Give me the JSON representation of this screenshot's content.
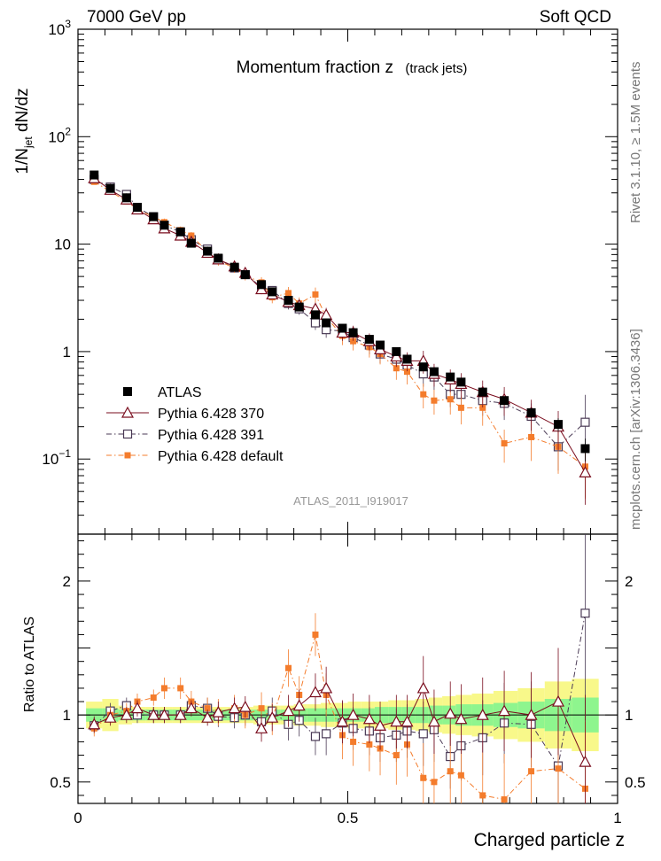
{
  "header": {
    "left": "7000 GeV pp",
    "right": "Soft QCD"
  },
  "title": "Momentum fraction z",
  "title_note": "(track jets)",
  "ylabel_top": "1/N_jet dN/dz",
  "ylabel_bottom": "Ratio to ATLAS",
  "xlabel": "Charged particle z",
  "side_top": "Rivet 3.1.10, ≥ 1.5M events",
  "side_bottom": "mcplots.cern.ch [arXiv:1306.3436]",
  "analysis_label": "ATLAS_2011_I919017",
  "colors": {
    "data": "#000000",
    "p370": "#7a0d1e",
    "p391": "#4a3a55",
    "pdef": "#f47c2c",
    "band_inner": "#8ef58e",
    "band_outer": "#f8f88a"
  },
  "chart_data": {
    "type": "scatter",
    "x": [
      0.03,
      0.06,
      0.09,
      0.11,
      0.14,
      0.16,
      0.19,
      0.21,
      0.24,
      0.26,
      0.29,
      0.31,
      0.34,
      0.36,
      0.39,
      0.41,
      0.44,
      0.46,
      0.49,
      0.51,
      0.54,
      0.56,
      0.59,
      0.61,
      0.64,
      0.66,
      0.69,
      0.71,
      0.75,
      0.79,
      0.84,
      0.89,
      0.94
    ],
    "xlim": [
      0,
      1
    ],
    "top_ylim": [
      0.02,
      1000
    ],
    "top_yscale": "log",
    "top_yticks": [
      {
        "v": 1000,
        "label": "10^3"
      },
      {
        "v": 100,
        "label": "10^2"
      },
      {
        "v": 10,
        "label": "10"
      },
      {
        "v": 1,
        "label": "1"
      },
      {
        "v": 0.1,
        "label": "10^-1"
      }
    ],
    "bottom_ylim": [
      0.34,
      2.35
    ],
    "bottom_yticks": [
      0.5,
      1,
      2
    ],
    "xticks": [
      0,
      0.5,
      1
    ],
    "legend_placement": "lower-left",
    "series": [
      {
        "key": "data",
        "name": "ATLAS",
        "marker": "filled-square",
        "line": "none",
        "values": [
          44,
          33,
          27,
          22,
          18,
          15,
          13,
          10.2,
          8.6,
          7.4,
          6.1,
          5.2,
          4.2,
          3.6,
          3.0,
          2.6,
          2.2,
          1.85,
          1.65,
          1.5,
          1.3,
          1.15,
          1.0,
          0.85,
          0.72,
          0.65,
          0.58,
          0.52,
          0.42,
          0.35,
          0.27,
          0.21,
          0.125
        ],
        "errors": [
          1,
          1,
          0.8,
          0.6,
          0.5,
          0.4,
          0.4,
          0.3,
          0.3,
          0.2,
          0.2,
          0.15,
          0.12,
          0.1,
          0.08,
          0.07,
          0.06,
          0.05,
          0.05,
          0.04,
          0.04,
          0.03,
          0.03,
          0.03,
          0.03,
          0.03,
          0.03,
          0.03,
          0.03,
          0.03,
          0.03,
          0.03,
          0.03
        ]
      },
      {
        "key": "p370",
        "name": "Pythia 6.428 370",
        "marker": "open-triangle",
        "line": "solid",
        "values": [
          41,
          32,
          26,
          21,
          17,
          14,
          12,
          10.5,
          8.3,
          7.2,
          6.2,
          5.4,
          3.8,
          3.4,
          2.9,
          2.7,
          2.5,
          2.2,
          1.5,
          1.5,
          1.25,
          1.05,
          0.9,
          0.82,
          0.82,
          0.62,
          0.55,
          0.5,
          0.42,
          0.36,
          0.27,
          0.2,
          0.075
        ],
        "ratio": [
          0.93,
          0.98,
          1.0,
          1.05,
          1.0,
          1.0,
          1.0,
          1.05,
          0.98,
          1.02,
          1.05,
          1.06,
          0.9,
          0.98,
          1.03,
          1.07,
          1.17,
          1.2,
          0.95,
          1.0,
          0.97,
          0.92,
          0.95,
          0.95,
          1.2,
          0.95,
          1.01,
          0.97,
          1.0,
          1.03,
          1.0,
          1.1,
          0.65
        ],
        "ratio_err": [
          0.03,
          0.03,
          0.03,
          0.03,
          0.03,
          0.03,
          0.03,
          0.03,
          0.03,
          0.04,
          0.04,
          0.04,
          0.05,
          0.05,
          0.06,
          0.06,
          0.07,
          0.08,
          0.08,
          0.08,
          0.09,
          0.09,
          0.1,
          0.1,
          0.12,
          0.12,
          0.12,
          0.13,
          0.14,
          0.15,
          0.16,
          0.2,
          0.25
        ]
      },
      {
        "key": "p391",
        "name": "Pythia 6.428 391",
        "marker": "open-square",
        "line": "dash-dot",
        "values": [
          40,
          34,
          29,
          22,
          18,
          15,
          13,
          11,
          9.0,
          7.3,
          6.0,
          5.2,
          4.0,
          3.7,
          2.8,
          2.5,
          1.85,
          1.6,
          1.55,
          1.35,
          1.15,
          0.95,
          0.85,
          0.75,
          0.62,
          0.58,
          0.4,
          0.4,
          0.35,
          0.33,
          0.25,
          0.13,
          0.22
        ],
        "ratio": [
          0.92,
          1.03,
          1.07,
          1.0,
          1.0,
          1.0,
          1.0,
          1.07,
          1.05,
          0.99,
          0.98,
          1.0,
          0.95,
          1.03,
          0.93,
          0.96,
          0.84,
          0.86,
          0.94,
          0.9,
          0.88,
          0.83,
          0.85,
          0.88,
          0.86,
          0.89,
          0.69,
          0.77,
          0.83,
          0.94,
          0.93,
          0.62,
          1.76
        ],
        "ratio_err": [
          0.03,
          0.03,
          0.03,
          0.03,
          0.03,
          0.03,
          0.03,
          0.03,
          0.04,
          0.04,
          0.04,
          0.04,
          0.05,
          0.05,
          0.06,
          0.06,
          0.07,
          0.08,
          0.08,
          0.08,
          0.09,
          0.09,
          0.1,
          0.1,
          0.12,
          0.12,
          0.12,
          0.13,
          0.14,
          0.15,
          0.16,
          0.2,
          0.4
        ]
      },
      {
        "key": "pdef",
        "name": "Pythia 6.428 default",
        "marker": "filled-small-square",
        "line": "dash-dot",
        "values": [
          38,
          31,
          25,
          21,
          18,
          16,
          13.5,
          12,
          8.5,
          7.0,
          6.0,
          5.1,
          4.4,
          3.2,
          3.5,
          2.8,
          3.4,
          2.1,
          1.4,
          1.25,
          1.1,
          0.95,
          0.7,
          0.65,
          0.4,
          0.35,
          0.36,
          0.3,
          0.3,
          0.14,
          0.16,
          0.13,
          0.085
        ],
        "ratio": [
          0.9,
          1.0,
          1.03,
          1.1,
          1.13,
          1.2,
          1.2,
          1.1,
          1.05,
          1.02,
          1.05,
          1.0,
          1.05,
          0.97,
          1.35,
          1.15,
          1.6,
          1.15,
          0.85,
          0.8,
          0.78,
          0.75,
          0.7,
          0.78,
          0.53,
          0.5,
          0.58,
          0.55,
          0.4,
          0.37,
          0.58,
          0.6,
          0.45
        ],
        "ratio_err": [
          0.03,
          0.03,
          0.03,
          0.03,
          0.03,
          0.04,
          0.04,
          0.04,
          0.04,
          0.05,
          0.05,
          0.05,
          0.06,
          0.06,
          0.07,
          0.07,
          0.08,
          0.08,
          0.09,
          0.09,
          0.1,
          0.1,
          0.11,
          0.12,
          0.13,
          0.13,
          0.14,
          0.15,
          0.16,
          0.17,
          0.2,
          0.22,
          0.25
        ]
      }
    ],
    "band_inner": [
      0.05,
      0.05,
      0.04,
      0.04,
      0.04,
      0.04,
      0.04,
      0.04,
      0.04,
      0.04,
      0.04,
      0.04,
      0.04,
      0.04,
      0.04,
      0.05,
      0.05,
      0.05,
      0.05,
      0.05,
      0.05,
      0.06,
      0.06,
      0.06,
      0.06,
      0.07,
      0.07,
      0.08,
      0.08,
      0.09,
      0.1,
      0.12,
      0.13
    ],
    "band_outer": [
      0.1,
      0.12,
      0.07,
      0.06,
      0.06,
      0.06,
      0.06,
      0.06,
      0.06,
      0.06,
      0.06,
      0.06,
      0.07,
      0.07,
      0.07,
      0.08,
      0.08,
      0.09,
      0.09,
      0.1,
      0.1,
      0.1,
      0.11,
      0.11,
      0.12,
      0.13,
      0.14,
      0.15,
      0.16,
      0.18,
      0.2,
      0.25,
      0.27
    ]
  }
}
